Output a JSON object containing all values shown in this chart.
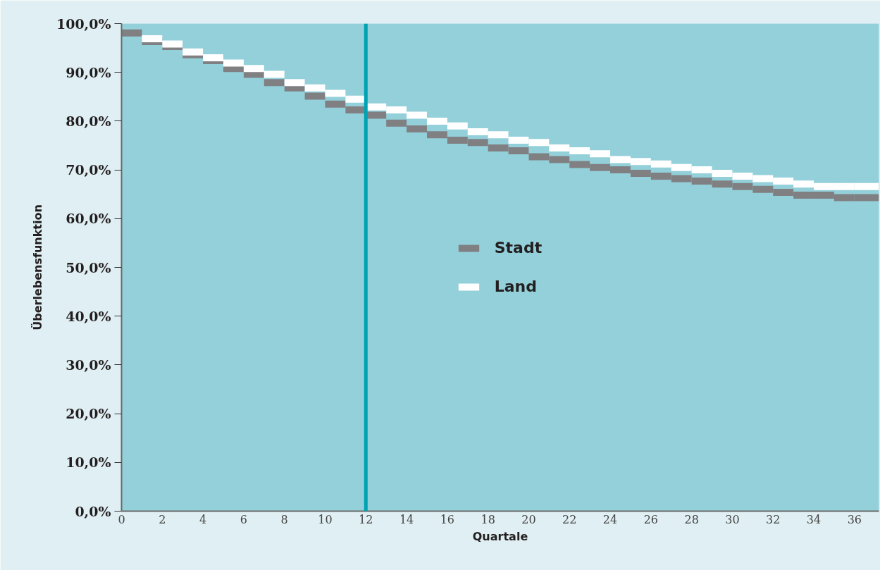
{
  "chart_data": {
    "type": "step",
    "xlabel": "Quartale",
    "ylabel": "Überlebensfunktion",
    "x": [
      0,
      1,
      2,
      3,
      4,
      5,
      6,
      7,
      8,
      9,
      10,
      11,
      12,
      13,
      14,
      15,
      16,
      17,
      18,
      19,
      20,
      21,
      22,
      23,
      24,
      25,
      26,
      27,
      28,
      29,
      30,
      31,
      32,
      33,
      34,
      35,
      36,
      37.2
    ],
    "series": [
      {
        "name": "Stadt",
        "color": "#808083",
        "values": [
          98.1,
          96.3,
          95.3,
          93.6,
          92.4,
          90.8,
          89.6,
          87.9,
          86.8,
          85.1,
          83.5,
          82.3,
          81.2,
          79.6,
          78.4,
          77.2,
          76.1,
          75.6,
          74.5,
          73.9,
          72.7,
          72.1,
          71.1,
          70.5,
          70.0,
          69.3,
          68.7,
          68.2,
          67.7,
          67.1,
          66.6,
          66.0,
          65.4,
          64.8,
          64.8,
          64.3,
          64.3,
          64.3
        ]
      },
      {
        "name": "Land",
        "color": "#ffffff",
        "values": [
          null,
          96.9,
          95.8,
          94.2,
          93.0,
          91.9,
          90.8,
          89.6,
          87.9,
          86.8,
          85.7,
          84.5,
          82.9,
          82.3,
          81.2,
          80.0,
          79.0,
          77.8,
          77.2,
          76.1,
          75.6,
          74.5,
          73.9,
          73.3,
          72.1,
          71.7,
          71.2,
          70.5,
          70.0,
          69.3,
          68.7,
          68.2,
          67.7,
          67.1,
          66.6,
          66.6,
          66.6,
          66.6
        ]
      }
    ],
    "xlim": [
      0,
      37.2
    ],
    "xticks": [
      0,
      2,
      4,
      6,
      8,
      10,
      12,
      14,
      16,
      18,
      20,
      22,
      24,
      26,
      28,
      30,
      32,
      34,
      36
    ],
    "ylim": [
      0,
      100
    ],
    "yticks": [
      {
        "value": 0,
        "label": "0,0%"
      },
      {
        "value": 10,
        "label": "10,0%"
      },
      {
        "value": 20,
        "label": "20,0%"
      },
      {
        "value": 30,
        "label": "30,0%"
      },
      {
        "value": 40,
        "label": "40,0%"
      },
      {
        "value": 50,
        "label": "50,0%"
      },
      {
        "value": 60,
        "label": "60,0%"
      },
      {
        "value": 70,
        "label": "70,0%"
      },
      {
        "value": 80,
        "label": "80,0%"
      },
      {
        "value": 90,
        "label": "90,0%"
      },
      {
        "value": 100,
        "label": "100,0%"
      }
    ],
    "ref_lines": [
      {
        "axis": "x",
        "value": 12,
        "color": "#00a3b4"
      }
    ],
    "legend": "center",
    "grid": false
  }
}
